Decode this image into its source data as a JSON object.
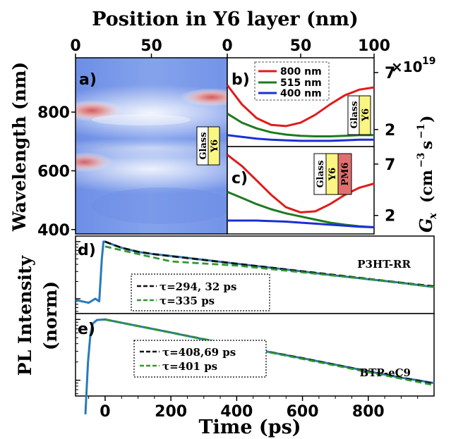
{
  "figure": {
    "top_axis_label": "Position in Y6 layer (nm)",
    "left_axis_label": "Wavelength (nm)",
    "right_axis_label": "G",
    "right_axis_sub": "x",
    "right_axis_units": "(cm",
    "right_axis_units2": "s",
    "right_axis_units_close": ")",
    "right_axis_exp_a": "−3",
    "right_axis_exp_b": "−1",
    "right_axis_multiplier": "×10",
    "right_axis_multiplier_exp": "19",
    "pl_axis_label_1": "PL Intensity",
    "pl_axis_label_2": "(norm)",
    "bottom_axis_label": "Time (ps)"
  },
  "chart_data": [
    {
      "panel": "a)",
      "type": "heatmap",
      "x_axis": {
        "label": "Position in Y6 layer (nm)",
        "ticks": [
          0,
          50
        ],
        "range": [
          0,
          100
        ]
      },
      "y_axis": {
        "label": "Wavelength (nm)",
        "ticks": [
          400,
          600,
          800
        ],
        "range": [
          385,
          985
        ]
      },
      "colors": {
        "low": "#6f90e8",
        "high": "#d85a5e",
        "mid": "#ffffff"
      },
      "bands": [
        {
          "wavelength": 820,
          "intensity": "high"
        },
        {
          "wavelength": 630,
          "intensity": "high"
        },
        {
          "wavelength": 560,
          "intensity": "mid"
        }
      ],
      "inset": {
        "labels": [
          "Glass",
          "Y6"
        ]
      }
    },
    {
      "panel": "b)",
      "type": "line",
      "x_axis": {
        "ticks": [
          0,
          50,
          100
        ],
        "range": [
          0,
          100
        ]
      },
      "y_axis": {
        "ticks": [
          2,
          7
        ],
        "range": [
          0.5,
          8.3
        ]
      },
      "series": [
        {
          "name": "800 nm",
          "color": "#e01b1b",
          "x": [
            0,
            10,
            20,
            30,
            40,
            50,
            60,
            70,
            80,
            90,
            100
          ],
          "y": [
            5.9,
            4.2,
            3.0,
            2.4,
            2.3,
            2.6,
            3.3,
            4.2,
            5.0,
            5.5,
            5.7
          ]
        },
        {
          "name": "515 nm",
          "color": "#1f7a1f",
          "x": [
            0,
            10,
            20,
            30,
            40,
            50,
            60,
            70,
            80,
            90,
            100
          ],
          "y": [
            3.4,
            2.6,
            2.1,
            1.75,
            1.55,
            1.45,
            1.4,
            1.4,
            1.45,
            1.5,
            1.5
          ]
        },
        {
          "name": "400 nm",
          "color": "#1a2fd6",
          "x": [
            0,
            10,
            20,
            30,
            40,
            50,
            60,
            70,
            80,
            90,
            100
          ],
          "y": [
            1.5,
            1.35,
            1.2,
            1.1,
            1.05,
            1.0,
            1.0,
            1.0,
            1.05,
            1.1,
            1.1
          ]
        }
      ],
      "legend": "top-left",
      "inset": {
        "labels": [
          "Glass",
          "Y6"
        ]
      }
    },
    {
      "panel": "c)",
      "type": "line",
      "x_axis": {
        "range": [
          0,
          100
        ]
      },
      "y_axis": {
        "ticks": [
          2,
          7
        ],
        "range": [
          0.2,
          8.7
        ]
      },
      "series": [
        {
          "name": "800 nm",
          "color": "#e01b1b",
          "x": [
            0,
            10,
            20,
            30,
            40,
            50,
            60,
            70,
            80,
            90,
            100
          ],
          "y": [
            7.9,
            6.8,
            5.4,
            4.0,
            2.8,
            2.3,
            2.4,
            3.1,
            4.0,
            4.7,
            5.1
          ]
        },
        {
          "name": "515 nm",
          "color": "#1f7a1f",
          "x": [
            0,
            10,
            20,
            30,
            40,
            50,
            60,
            70,
            80,
            90,
            100
          ],
          "y": [
            4.3,
            3.7,
            3.1,
            2.6,
            2.2,
            1.9,
            1.6,
            1.3,
            1.1,
            0.95,
            0.85
          ]
        },
        {
          "name": "400 nm",
          "color": "#1a2fd6",
          "x": [
            0,
            10,
            20,
            30,
            40,
            50,
            60,
            70,
            80,
            90,
            100
          ],
          "y": [
            1.5,
            1.5,
            1.5,
            1.45,
            1.4,
            1.3,
            1.2,
            1.1,
            1.0,
            0.9,
            0.85
          ]
        }
      ],
      "inset": {
        "labels": [
          "Glass",
          "Y6",
          "PM6"
        ]
      }
    },
    {
      "panel": "d)",
      "type": "line",
      "name": "P3HT-RR",
      "y_scale": "log",
      "x_axis": {
        "range": [
          -90,
          1000
        ]
      },
      "y_axis": {
        "label": "PL Intensity (norm)",
        "range": [
          0.055,
          1.25
        ]
      },
      "series": [
        {
          "role": "data",
          "color": "#2a7ab8",
          "x": [
            -90,
            -70,
            -50,
            -30,
            -18,
            -10,
            -5,
            0,
            10,
            25,
            50,
            100,
            150,
            200,
            300,
            400,
            500,
            600,
            700,
            800,
            900,
            1000
          ],
          "y": [
            0.095,
            0.09,
            0.085,
            0.1,
            0.09,
            0.5,
            1.0,
            1.0,
            0.95,
            0.88,
            0.78,
            0.66,
            0.6,
            0.56,
            0.48,
            0.41,
            0.35,
            0.3,
            0.255,
            0.22,
            0.19,
            0.16
          ]
        },
        {
          "role": "fit",
          "color": "#111111",
          "dash": true,
          "x": [
            0,
            25,
            50,
            100,
            150,
            200,
            300,
            400,
            500,
            600,
            700,
            800,
            900,
            1000
          ],
          "y": [
            1.0,
            0.88,
            0.78,
            0.665,
            0.6,
            0.555,
            0.478,
            0.41,
            0.352,
            0.302,
            0.26,
            0.223,
            0.19,
            0.165
          ]
        },
        {
          "role": "fit",
          "color": "#2e9a2e",
          "dash": true,
          "x": [
            0,
            200,
            400,
            600,
            800,
            1000
          ],
          "y": [
            0.82,
            0.45,
            0.38,
            0.29,
            0.22,
            0.16
          ]
        }
      ],
      "annotations": [
        "τ=294, 32 ps",
        "τ=335 ps"
      ]
    },
    {
      "panel": "e)",
      "type": "line",
      "name": "BTP-eC9",
      "y_scale": "log",
      "x_axis": {
        "label": "Time (ps)",
        "ticks": [
          0,
          200,
          400,
          600,
          800
        ],
        "range": [
          -90,
          1000
        ]
      },
      "y_axis": {
        "range": [
          0.055,
          1.25
        ]
      },
      "series": [
        {
          "role": "data",
          "color": "#2a7ab8",
          "x": [
            -60,
            -52,
            -45,
            -38,
            -25,
            0,
            100,
            200,
            300,
            400,
            500,
            600,
            700,
            800,
            900,
            950,
            1000
          ],
          "y": [
            0.0,
            0.2,
            0.55,
            0.85,
            0.98,
            1.0,
            0.78,
            0.61,
            0.47,
            0.37,
            0.29,
            0.23,
            0.18,
            0.14,
            0.11,
            0.1,
            0.09
          ]
        },
        {
          "role": "fit",
          "color": "#111111",
          "dash": true,
          "x": [
            0,
            200,
            400,
            600,
            800,
            1000
          ],
          "y": [
            1.0,
            0.61,
            0.37,
            0.23,
            0.14,
            0.087
          ]
        },
        {
          "role": "fit",
          "color": "#2e9a2e",
          "dash": true,
          "x": [
            0,
            200,
            400,
            600,
            800,
            1000
          ],
          "y": [
            1.0,
            0.607,
            0.369,
            0.224,
            0.136,
            0.083
          ]
        }
      ],
      "annotations": [
        "τ=408,69 ps",
        "τ=401 ps"
      ]
    }
  ]
}
